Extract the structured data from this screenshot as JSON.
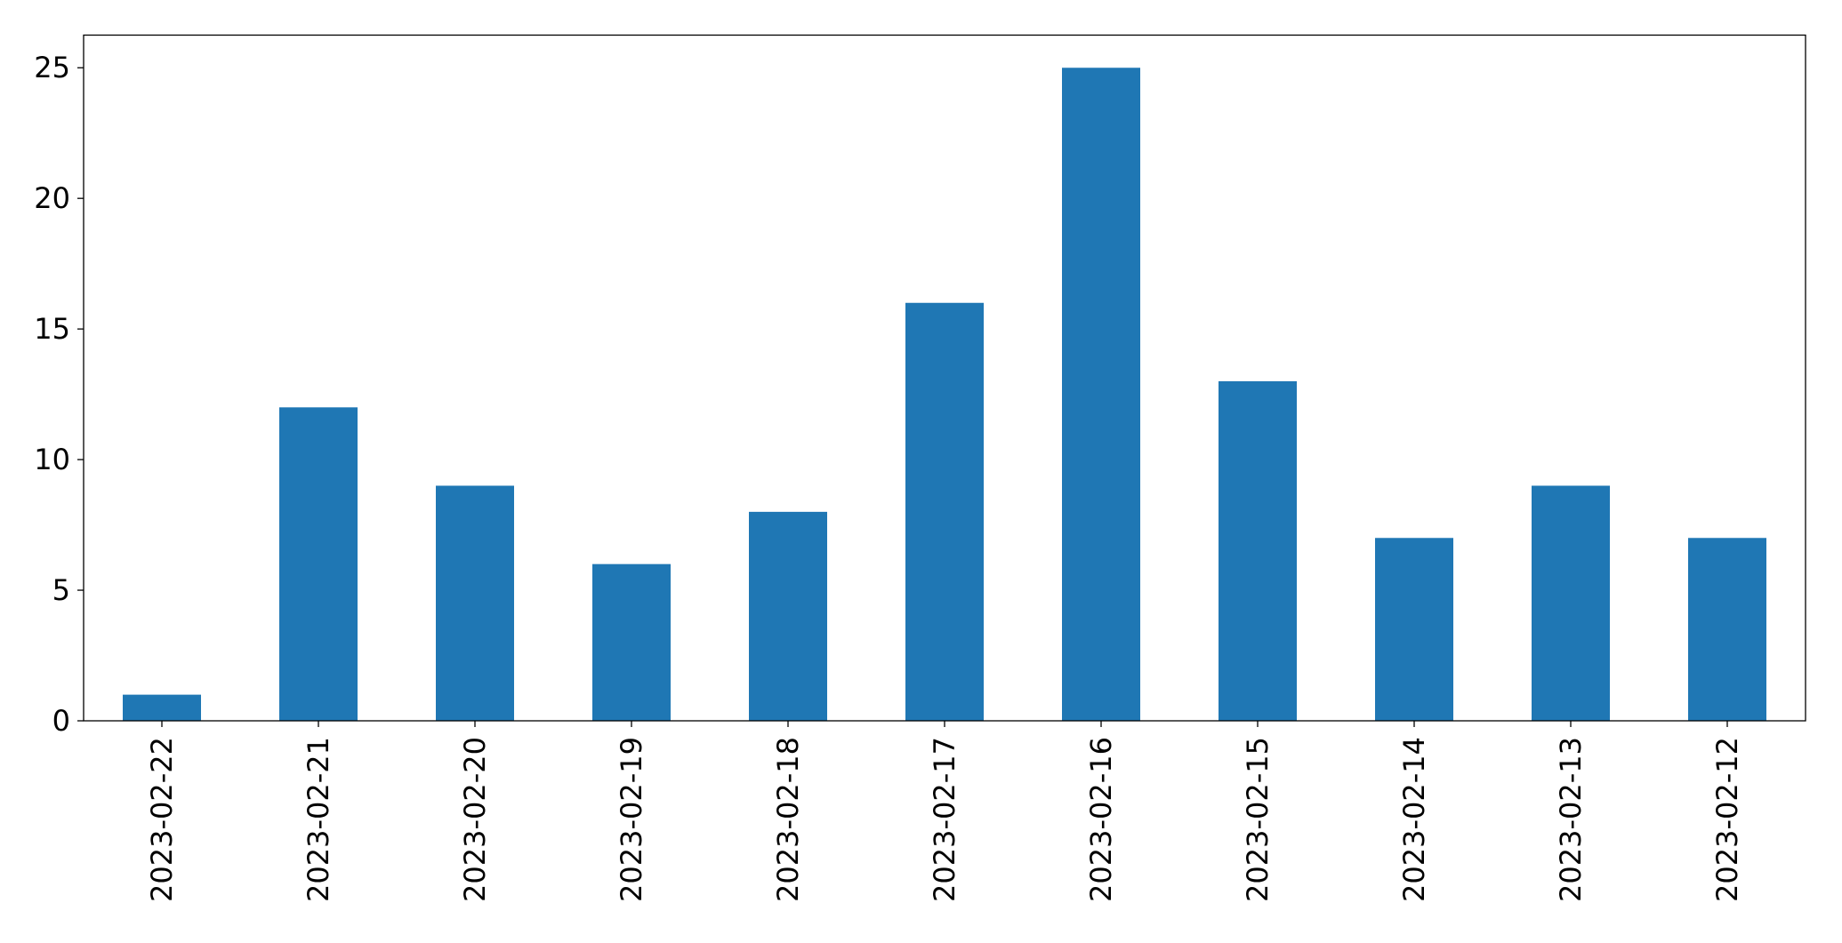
{
  "chart_data": {
    "type": "bar",
    "categories": [
      "2023-02-22",
      "2023-02-21",
      "2023-02-20",
      "2023-02-19",
      "2023-02-18",
      "2023-02-17",
      "2023-02-16",
      "2023-02-15",
      "2023-02-14",
      "2023-02-13",
      "2023-02-12"
    ],
    "values": [
      1,
      12,
      9,
      6,
      8,
      16,
      25,
      13,
      7,
      9,
      7
    ],
    "title": "",
    "xlabel": "",
    "ylabel": "",
    "ylim": [
      0,
      26.25
    ],
    "yticks": [
      0,
      5,
      10,
      15,
      20,
      25
    ],
    "xtick_rotation": 90,
    "grid": false,
    "bar_color": "#1f77b4"
  }
}
